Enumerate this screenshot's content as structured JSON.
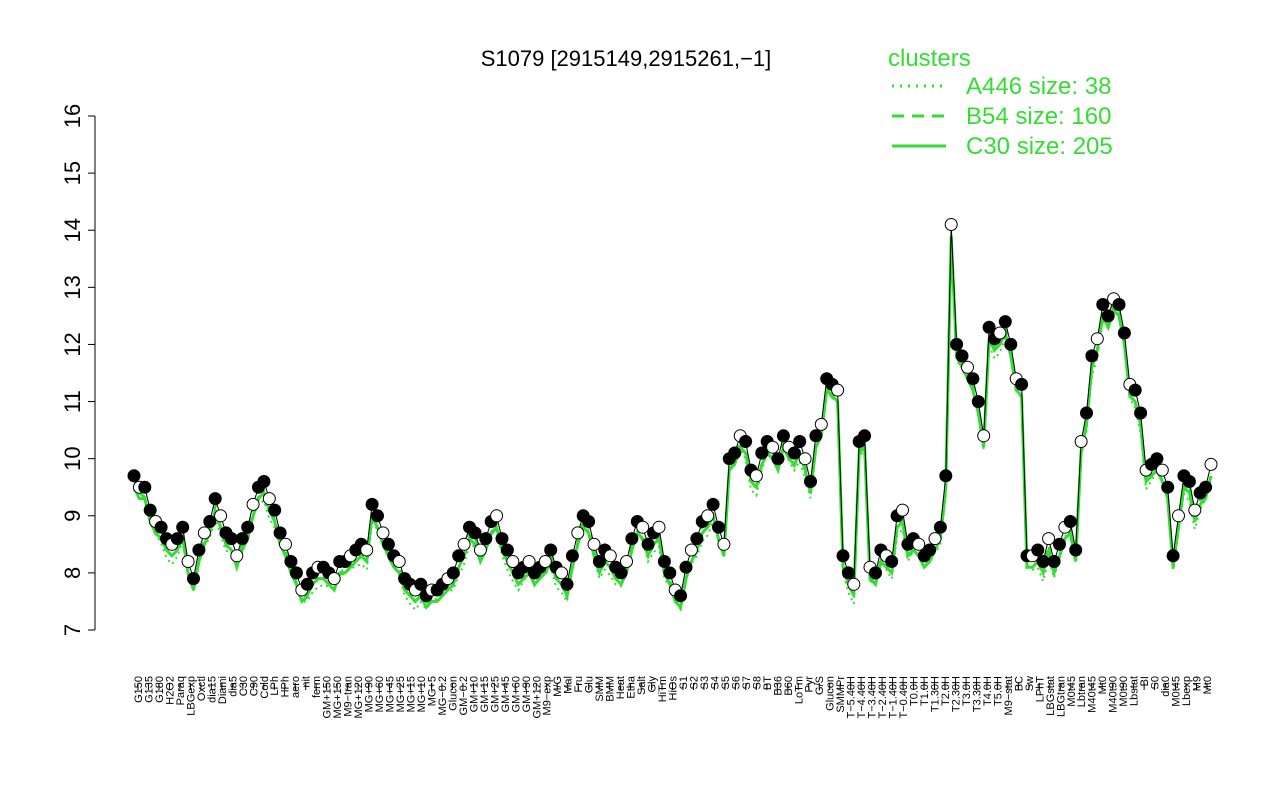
{
  "chart_data": {
    "type": "line",
    "title": "S1079 [2915149,2915261,−1]",
    "xlabel": "",
    "ylabel": "",
    "ylim": [
      7,
      16
    ],
    "yticks": [
      "7",
      "8",
      "9",
      "10",
      "11",
      "12",
      "13",
      "14",
      "15",
      "16"
    ],
    "xtick_labels": [
      "G150",
      "G135",
      "G180",
      "H2O2",
      "Paraq",
      "LBGexp",
      "Oxctl",
      "dia15",
      "Diami",
      "dia5",
      "C30",
      "C90",
      "Cold",
      "LPh",
      "HPh",
      "aero",
      "nit",
      "ferm",
      "GM+150",
      "MG+150",
      "M9−tran",
      "MG+120",
      "MG+90",
      "MG+60",
      "MG+45",
      "MG+25",
      "MG+15",
      "MG+10",
      "MG+5",
      "MG−0.2",
      "Glucon",
      "GM−0.2",
      "GM+10",
      "GM+15",
      "GM+25",
      "GM+45",
      "GM+60",
      "GM+90",
      "GM+120",
      "M9−exp",
      "M/G",
      "Mal",
      "Fru",
      "Glu",
      "SMM",
      "BMM",
      "Heat",
      "Etha",
      "Salt",
      "Gly",
      "HiTm",
      "HiOs",
      "S1",
      "S2",
      "S3",
      "S4",
      "S5",
      "S6",
      "S7",
      "S8",
      "BT",
      "B36",
      "B60",
      "LoTm",
      "Pyr",
      "G/S",
      "Glucon",
      "SMMPr",
      "T−5.40H",
      "T−4.40H",
      "T−3.40H",
      "T−2.40H",
      "T−1.40H",
      "T−0.40H",
      "T0.0H",
      "T1.0H",
      "T1.30H",
      "T2.0H",
      "T2.30H",
      "T3.0H",
      "T3.30H",
      "T4.0H",
      "T5.0H",
      "M9−stat",
      "BC",
      "Sw",
      "LPhT",
      "LBGstat",
      "LBGtran",
      "M0t45",
      "Lbtran",
      "M40t45",
      "Mt0",
      "M40t90",
      "M0t90",
      "Lbstat",
      "BI",
      "S0",
      "dia0",
      "M0t45",
      "Lbexp",
      "M9",
      "Mt0"
    ],
    "points": [
      9.7,
      9.5,
      9.5,
      9.1,
      8.9,
      8.8,
      8.6,
      8.5,
      8.6,
      8.8,
      8.2,
      7.9,
      8.4,
      8.7,
      8.9,
      9.3,
      9.0,
      8.7,
      8.6,
      8.3,
      8.6,
      8.8,
      9.2,
      9.5,
      9.6,
      9.3,
      9.1,
      8.7,
      8.5,
      8.2,
      8.0,
      7.7,
      7.8,
      8.0,
      8.1,
      8.1,
      8.0,
      7.9,
      8.2,
      8.2,
      8.3,
      8.4,
      8.5,
      8.4,
      9.2,
      9.0,
      8.7,
      8.5,
      8.3,
      8.2,
      7.9,
      7.8,
      7.7,
      7.8,
      7.6,
      7.7,
      7.7,
      7.8,
      7.9,
      8.0,
      8.3,
      8.5,
      8.8,
      8.7,
      8.4,
      8.6,
      8.9,
      9.0,
      8.6,
      8.4,
      8.2,
      8.0,
      8.1,
      8.2,
      8.0,
      8.1,
      8.2,
      8.4,
      8.1,
      8.0,
      7.8,
      8.3,
      8.7,
      9.0,
      8.9,
      8.5,
      8.2,
      8.4,
      8.3,
      8.1,
      8.0,
      8.2,
      8.6,
      8.9,
      8.8,
      8.5,
      8.7,
      8.8,
      8.2,
      8.0,
      7.7,
      7.6,
      8.1,
      8.4,
      8.6,
      8.9,
      9.0,
      9.2,
      8.8,
      8.5,
      10.0,
      10.1,
      10.4,
      10.3,
      9.8,
      9.7,
      10.1,
      10.3,
      10.2,
      10.0,
      10.4,
      10.2,
      10.1,
      10.3,
      10.0,
      9.6,
      10.4,
      10.6,
      11.4,
      11.3,
      11.2,
      8.3,
      8.0,
      7.8,
      10.3,
      10.4,
      8.1,
      8.0,
      8.4,
      8.3,
      8.2,
      9.0,
      9.1,
      8.5,
      8.6,
      8.5,
      8.3,
      8.4,
      8.6,
      8.8,
      9.7,
      14.1,
      12.0,
      11.8,
      11.6,
      11.4,
      11.0,
      10.4,
      12.3,
      12.1,
      12.2,
      12.4,
      12.0,
      11.4,
      11.3,
      8.3,
      8.3,
      8.4,
      8.2,
      8.6,
      8.2,
      8.5,
      8.8,
      8.9,
      8.4,
      10.3,
      10.8,
      11.8,
      12.1,
      12.7,
      12.5,
      12.8,
      12.7,
      12.2,
      11.3,
      11.2,
      10.8,
      9.8,
      9.9,
      10.0,
      9.8,
      9.5,
      8.3,
      9.0,
      9.7,
      9.6,
      9.1,
      9.4,
      9.5,
      9.9
    ],
    "series": [
      {
        "name": "A446 size: 38",
        "style": "dotted",
        "color": "#33dd33"
      },
      {
        "name": "B54 size: 160",
        "style": "dashed",
        "color": "#33dd33"
      },
      {
        "name": "C30 size: 205",
        "style": "solid",
        "color": "#33dd33"
      }
    ],
    "legend_title": "clusters",
    "legend_position": "top-right",
    "grid": false
  }
}
